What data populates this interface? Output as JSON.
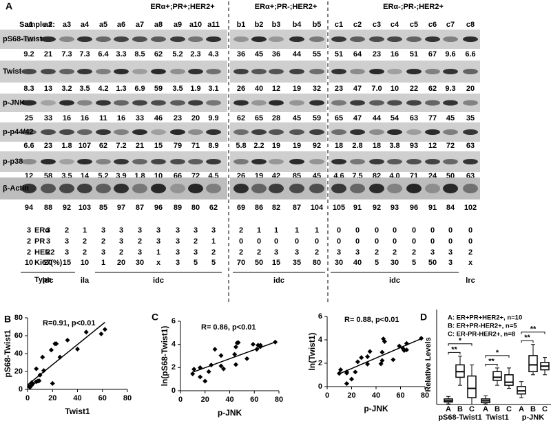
{
  "panel_a": {
    "label": "A",
    "sample_label": "Sample #:",
    "groups": [
      "ERα+;PR+;HER2+",
      "ERα+;PR-;HER2+",
      "ERα-;PR-;HER2+"
    ],
    "samples": [
      "a1",
      "a2",
      "a3",
      "a4",
      "a5",
      "a6",
      "a7",
      "a8",
      "a9",
      "a10",
      "a11",
      "b1",
      "b2",
      "b3",
      "b4",
      "b5",
      "c1",
      "c2",
      "c3",
      "c4",
      "c5",
      "c6",
      "c7",
      "c8"
    ],
    "blot_rows": [
      {
        "name": "pS68-Twist",
        "values": [
          9.2,
          21,
          7.3,
          7.3,
          6.4,
          3.3,
          8.5,
          62,
          5.2,
          2.3,
          4.3,
          36,
          45,
          36,
          44,
          55,
          51,
          64,
          23,
          16,
          51,
          67,
          9.6,
          6.6
        ]
      },
      {
        "name": "Twist",
        "values": [
          8.3,
          13,
          3.2,
          3.5,
          4.2,
          1.3,
          6.9,
          59,
          3.5,
          1.9,
          3.1,
          26,
          40,
          12,
          19,
          32,
          23,
          47,
          "7.0",
          10,
          22,
          62,
          9.3,
          20
        ]
      },
      {
        "name": "p-JNK",
        "values": [
          25,
          33,
          16,
          16,
          11,
          16,
          33,
          46,
          23,
          20,
          9.9,
          62,
          65,
          28,
          45,
          59,
          65,
          47,
          44,
          54,
          63,
          77,
          45,
          35
        ]
      },
      {
        "name": "p-p44/42",
        "values": [
          6.6,
          23,
          1.8,
          107,
          62,
          7.2,
          21,
          15,
          79,
          71,
          8.9,
          5.8,
          2.2,
          19,
          19,
          92,
          18,
          2.8,
          18,
          3.8,
          93,
          12,
          72,
          63
        ]
      },
      {
        "name": "p-p38",
        "values": [
          12,
          58,
          3.5,
          14,
          5.2,
          3.9,
          1.8,
          10,
          66,
          72,
          4.5,
          26,
          19,
          42,
          85,
          45,
          4.6,
          7.5,
          82,
          "4.0",
          71,
          24,
          50,
          63
        ]
      },
      {
        "name": "β-Actin",
        "values": [
          94,
          88,
          92,
          103,
          85,
          97,
          87,
          96,
          89,
          80,
          62,
          69,
          86,
          82,
          87,
          104,
          105,
          91,
          92,
          93,
          96,
          91,
          84,
          102
        ]
      }
    ],
    "clinical_rows": [
      {
        "name": "ERα",
        "values": [
          3,
          3,
          2,
          1,
          3,
          3,
          3,
          3,
          3,
          3,
          3,
          2,
          1,
          1,
          1,
          1,
          0,
          0,
          0,
          0,
          0,
          0,
          0,
          0
        ]
      },
      {
        "name": "PR",
        "values": [
          2,
          3,
          3,
          2,
          2,
          3,
          2,
          3,
          3,
          2,
          1,
          0,
          0,
          0,
          0,
          0,
          0,
          0,
          0,
          0,
          0,
          0,
          0,
          0
        ]
      },
      {
        "name": "HER2",
        "values": [
          2,
          2,
          3,
          2,
          3,
          2,
          3,
          1,
          3,
          3,
          2,
          2,
          2,
          3,
          3,
          2,
          3,
          3,
          2,
          2,
          2,
          3,
          3,
          2
        ]
      },
      {
        "name": "Ki67(%)",
        "values": [
          10,
          20,
          15,
          10,
          1,
          20,
          30,
          "x",
          3,
          5,
          5,
          70,
          50,
          15,
          35,
          80,
          30,
          40,
          5,
          30,
          5,
          50,
          3,
          "x"
        ]
      }
    ],
    "type_label": "Type",
    "types": [
      "idc",
      "ila",
      "idc",
      "idc",
      "idc",
      "lrc"
    ]
  },
  "panel_b": {
    "label": "B",
    "chart": {
      "type": "scatter",
      "xlabel": "Twist1",
      "ylabel": "pS68-Twist1",
      "annotation": "R=0.91, p<0.01",
      "x": [
        8.3,
        13,
        3.2,
        3.5,
        4.2,
        1.3,
        6.9,
        59,
        3.5,
        1.9,
        3.1,
        26,
        40,
        12,
        19,
        32,
        23,
        47,
        7,
        10,
        22,
        62,
        9.3,
        20
      ],
      "y": [
        9.2,
        21,
        7.3,
        7.3,
        6.4,
        3.3,
        8.5,
        62,
        5.2,
        2.3,
        4.3,
        36,
        45,
        36,
        44,
        55,
        51,
        64,
        23,
        16,
        51,
        67,
        9.6,
        6.6
      ],
      "fit": {
        "x": [
          0,
          62
        ],
        "y": [
          5,
          75
        ]
      },
      "xlim": [
        0,
        80
      ],
      "ylim": [
        0,
        80
      ],
      "xticks": [
        0,
        20,
        40,
        60,
        80
      ],
      "yticks": [
        0,
        20,
        40,
        60,
        80
      ]
    }
  },
  "panel_c": {
    "label": "C",
    "charts": [
      {
        "type": "scatter",
        "xlabel": "p-JNK",
        "ylabel": "ln(pS68-Twist1)",
        "annotation": "R= 0.86, p<0.01",
        "x": [
          25,
          33,
          16,
          16,
          11,
          16,
          33,
          46,
          23,
          20,
          9.9,
          62,
          65,
          28,
          45,
          59,
          65,
          47,
          44,
          54,
          63,
          77,
          45,
          35
        ],
        "y": [
          2.22,
          3.04,
          1.99,
          1.99,
          1.86,
          1.19,
          2.14,
          4.13,
          1.65,
          0.83,
          1.46,
          3.58,
          3.81,
          3.58,
          3.78,
          4.01,
          3.93,
          4.16,
          3.14,
          2.77,
          3.93,
          4.2,
          2.26,
          1.89
        ],
        "fit": {
          "x": [
            10,
            77
          ],
          "y": [
            1.6,
            4.2
          ]
        },
        "xlim": [
          0,
          80
        ],
        "ylim": [
          0,
          6
        ],
        "xticks": [
          0,
          20,
          40,
          60,
          80
        ],
        "yticks": [
          0,
          2,
          4,
          6
        ]
      },
      {
        "type": "scatter",
        "xlabel": "p-JNK",
        "ylabel": "ln(Twist1)",
        "annotation": "R= 0.88, p<0.01",
        "x": [
          25,
          33,
          16,
          16,
          11,
          16,
          33,
          46,
          23,
          20,
          9.9,
          62,
          65,
          28,
          45,
          59,
          65,
          47,
          44,
          54,
          63,
          77,
          45,
          35
        ],
        "y": [
          2.12,
          2.56,
          1.16,
          1.25,
          1.44,
          0.26,
          1.93,
          4.08,
          1.25,
          0.64,
          1.13,
          3.26,
          3.69,
          2.48,
          2.94,
          3.47,
          3.14,
          3.85,
          1.95,
          2.3,
          3.09,
          4.13,
          2.23,
          3.0
        ],
        "fit": {
          "x": [
            10,
            77
          ],
          "y": [
            1.1,
            4.1
          ]
        },
        "xlim": [
          0,
          80
        ],
        "ylim": [
          0,
          6
        ],
        "xticks": [
          0,
          20,
          40,
          60,
          80
        ],
        "yticks": [
          0,
          2,
          4,
          6
        ]
      }
    ]
  },
  "panel_d": {
    "label": "D",
    "chart": {
      "type": "box",
      "ylabel": "Relative Levels",
      "legend": [
        "A: ER+PR+HER2+, n=10",
        "B: ER+PR-HER2+, n=5",
        "C: ER-PR-HER2+, n=8"
      ],
      "ylim": [
        0,
        1.2
      ],
      "groups": [
        {
          "name": "pS68-Twist1",
          "significance": [
            "**",
            "*"
          ],
          "boxes": [
            {
              "name": "A",
              "min": 0.01,
              "q1": 0.04,
              "median": 0.06,
              "q3": 0.09,
              "max": 0.13
            },
            {
              "name": "B",
              "min": 0.31,
              "q1": 0.44,
              "median": 0.53,
              "q3": 0.64,
              "max": 0.78
            },
            {
              "name": "C",
              "min": 0.0,
              "q1": 0.11,
              "median": 0.26,
              "q3": 0.46,
              "max": 0.64
            }
          ]
        },
        {
          "name": "Twist1",
          "significance": [
            "**",
            "*"
          ],
          "boxes": [
            {
              "name": "A",
              "min": 0.01,
              "q1": 0.03,
              "median": 0.06,
              "q3": 0.09,
              "max": 0.14
            },
            {
              "name": "B",
              "min": 0.31,
              "q1": 0.39,
              "median": 0.44,
              "q3": 0.53,
              "max": 0.59
            },
            {
              "name": "C",
              "min": 0.26,
              "q1": 0.31,
              "median": 0.36,
              "q3": 0.48,
              "max": 0.59
            }
          ]
        },
        {
          "name": "p-JNK",
          "significance": [
            "**",
            "**"
          ],
          "boxes": [
            {
              "name": "A",
              "min": 0.11,
              "q1": 0.17,
              "median": 0.22,
              "q3": 0.29,
              "max": 0.37
            },
            {
              "name": "B",
              "min": 0.48,
              "q1": 0.53,
              "median": 0.64,
              "q3": 0.79,
              "max": 0.97
            },
            {
              "name": "C",
              "min": 0.48,
              "q1": 0.56,
              "median": 0.62,
              "q3": 0.68,
              "max": 0.76
            }
          ]
        }
      ]
    }
  }
}
